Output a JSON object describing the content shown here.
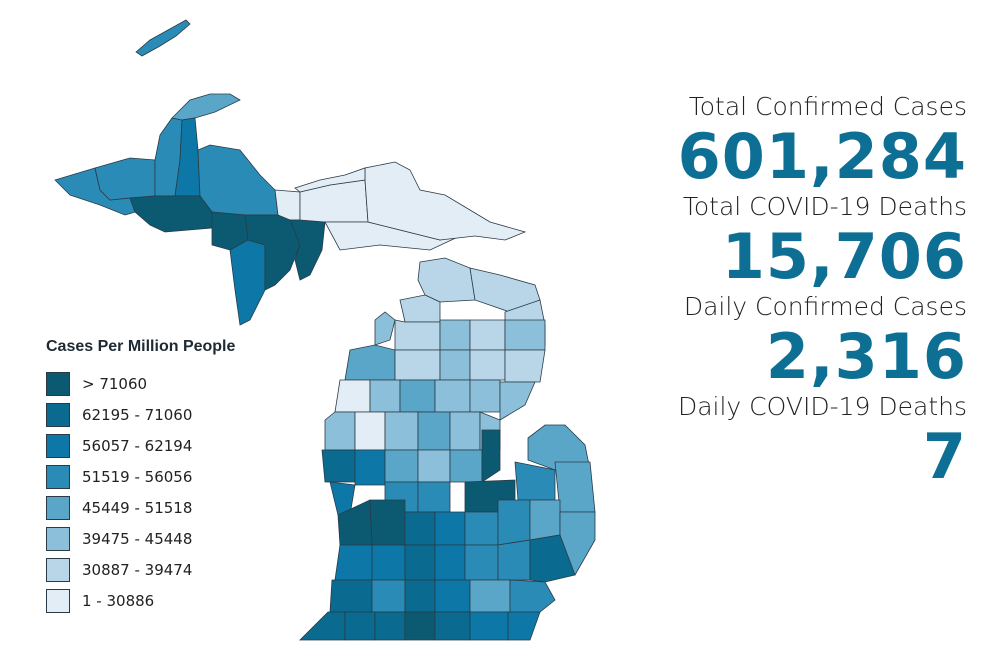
{
  "legend": {
    "title": "Cases Per Million People",
    "items": [
      {
        "label": "> 71060",
        "color": "#0b5a72"
      },
      {
        "label": "62195 - 71060",
        "color": "#0a6a8f"
      },
      {
        "label": "56057 - 62194",
        "color": "#0d78a8"
      },
      {
        "label": "51519 - 56056",
        "color": "#2a8cb6"
      },
      {
        "label": "45449 - 51518",
        "color": "#5aa6c8"
      },
      {
        "label": "39475 - 45448",
        "color": "#8cbfda"
      },
      {
        "label": "30887 - 39474",
        "color": "#b9d6e8"
      },
      {
        "label": "1 - 30886",
        "color": "#e3edf5"
      }
    ]
  },
  "stats": {
    "total_cases_label": "Total Confirmed Cases",
    "total_cases_value": "601,284",
    "total_deaths_label": "Total COVID-19 Deaths",
    "total_deaths_value": "15,706",
    "daily_cases_label": "Daily Confirmed Cases",
    "daily_cases_value": "2,316",
    "daily_deaths_label": "Daily COVID-19 Deaths",
    "daily_deaths_value": "7"
  },
  "colors": {
    "accent": "#0e6f95",
    "county_border": "#2a3b47"
  }
}
